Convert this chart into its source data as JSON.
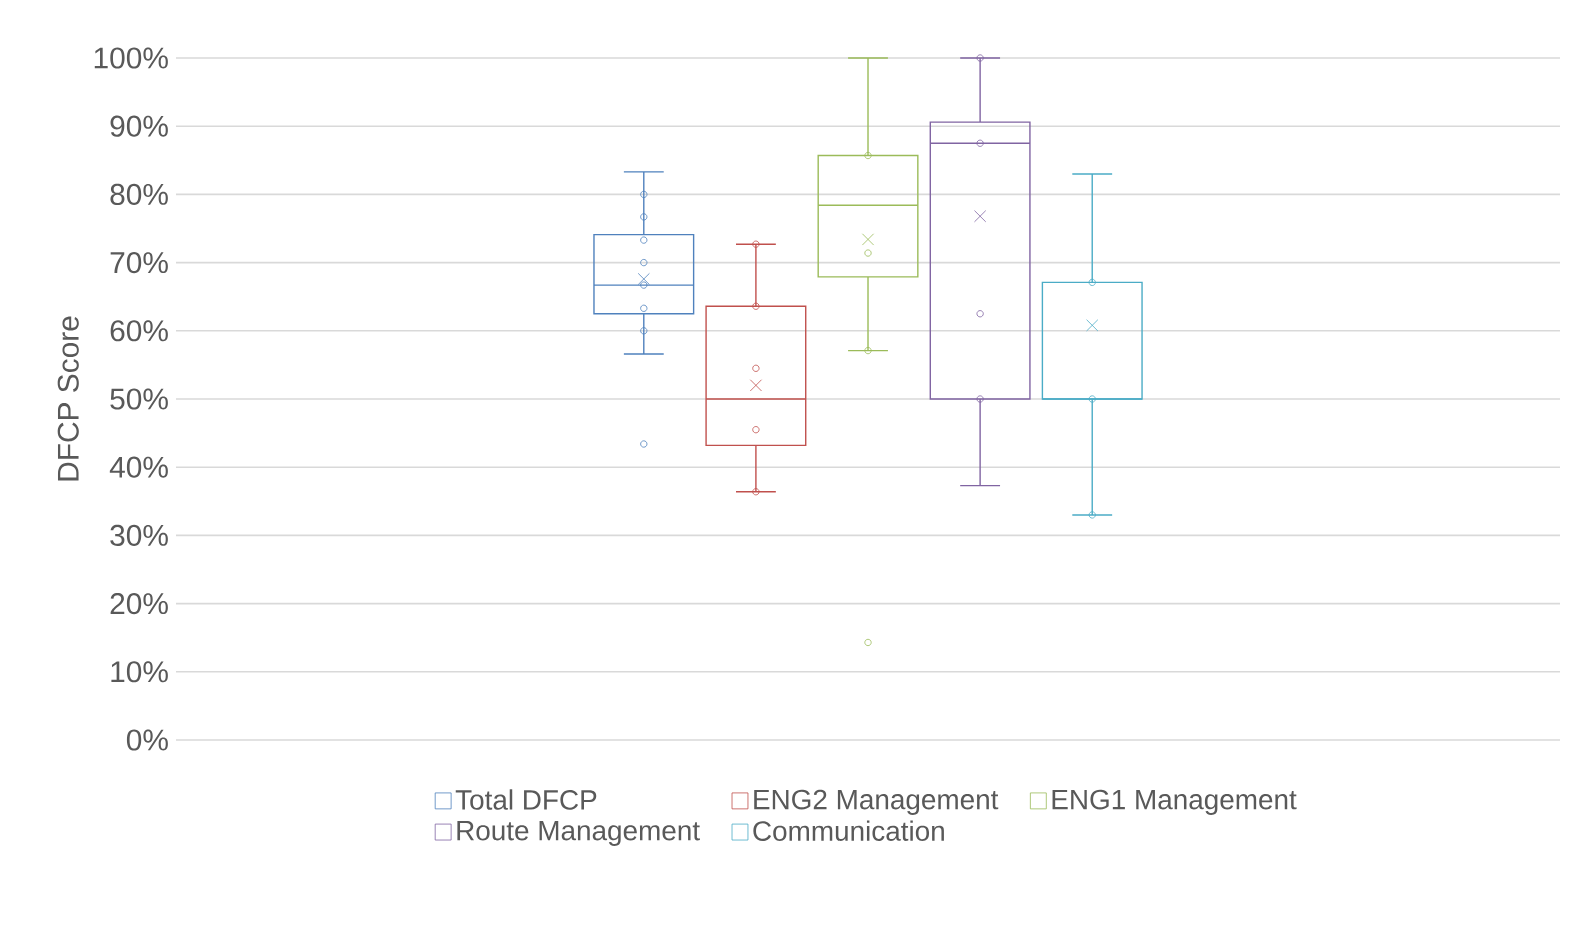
{
  "chart_data": {
    "type": "box",
    "ylabel": "DFCP Score",
    "categories": [
      null
    ],
    "series": [
      {
        "name": "Total DFCP",
        "color": "#4f81bd",
        "boxes": [
          {
            "low": 56.6,
            "q1": 62.5,
            "median": 66.7,
            "q3": 74.1,
            "high": 83.3,
            "mean": 67.6,
            "outliers": [
              80,
              76.7,
              73.3,
              70,
              66.7,
              63.3,
              60,
              43.4
            ]
          }
        ]
      },
      {
        "name": "ENG2 Management",
        "color": "#c0504d",
        "boxes": [
          {
            "low": 36.4,
            "q1": 43.2,
            "median": 50,
            "q3": 63.6,
            "high": 72.7,
            "mean": 52,
            "outliers": [
              72.7,
              63.6,
              54.5,
              45.5,
              36.4
            ]
          }
        ]
      },
      {
        "name": "ENG1 Management",
        "color": "#9bbb59",
        "boxes": [
          {
            "low": 57.1,
            "q1": 67.9,
            "median": 78.4,
            "q3": 85.7,
            "high": 100,
            "mean": 73.4,
            "outliers": [
              85.7,
              71.4,
              57.1,
              14.3
            ]
          }
        ]
      },
      {
        "name": "Route Management",
        "color": "#8064a2",
        "boxes": [
          {
            "low": 37.3,
            "q1": 50,
            "median": 87.5,
            "q3": 90.6,
            "high": 100,
            "mean": 76.8,
            "outliers": [
              100,
              87.5,
              62.5,
              50
            ]
          }
        ]
      },
      {
        "name": "Communication",
        "color": "#4bacc6",
        "boxes": [
          {
            "low": 33,
            "q1": 50,
            "median": 50,
            "q3": 67.1,
            "high": 83,
            "mean": 60.8,
            "outliers": [
              67.1,
              50,
              33
            ]
          }
        ]
      }
    ],
    "ylim": [
      0,
      100
    ],
    "yticks": [
      {
        "value": 0,
        "label": "0%"
      },
      {
        "value": 10,
        "label": "10%"
      },
      {
        "value": 20,
        "label": "20%"
      },
      {
        "value": 30,
        "label": "30%"
      },
      {
        "value": 40,
        "label": "40%"
      },
      {
        "value": 50,
        "label": "50%"
      },
      {
        "value": 60,
        "label": "60%"
      },
      {
        "value": 70,
        "label": "70%"
      },
      {
        "value": 80,
        "label": "80%"
      },
      {
        "value": 90,
        "label": "90%"
      },
      {
        "value": 100,
        "label": "100%"
      }
    ],
    "grid": "y",
    "legend": "bottom",
    "tick_labels": "y",
    "marker": "circle"
  }
}
